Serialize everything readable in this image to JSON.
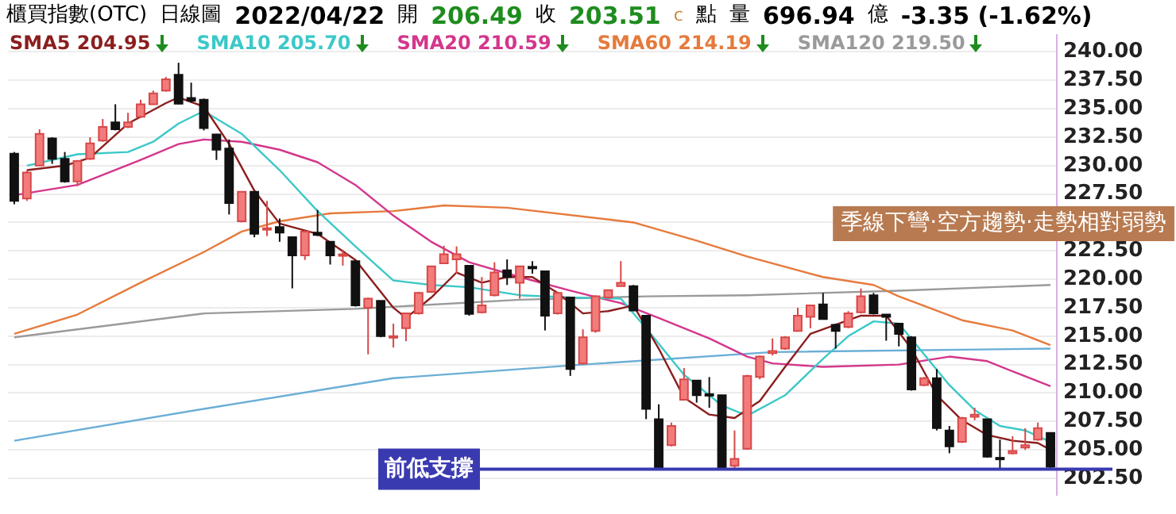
{
  "chart_data": {
    "type": "candlestick",
    "title": "櫃買指數(OTC)",
    "subtitle": "日線圖",
    "annotations": [
      "2022/04/22",
      "開",
      "206.49",
      "收",
      "203.51",
      "c",
      "點",
      "量",
      "696.94",
      "億",
      "-3.35 (-1.62%)",
      "季線下彎·空方趨勢·走勢相對弱勢"
    ],
    "categories": [
      null,
      null,
      null,
      null,
      null,
      null,
      null,
      null,
      null,
      null,
      null,
      null,
      null,
      null,
      null,
      null,
      null,
      null,
      null,
      null,
      null,
      null,
      null,
      null,
      null,
      null,
      null,
      null,
      null,
      null,
      null,
      null,
      null,
      null,
      null,
      null,
      null,
      null,
      null,
      null,
      null,
      null,
      null,
      null,
      null,
      null,
      null,
      null,
      null,
      null,
      null,
      null,
      null,
      null,
      null,
      null,
      null,
      null,
      null,
      null,
      null,
      null,
      null,
      null,
      null,
      null,
      null,
      null,
      null,
      null,
      null,
      null,
      null,
      null,
      null,
      null,
      null,
      null,
      null,
      null,
      null,
      null,
      null
    ],
    "ohlc": [
      [
        231.05,
        231.2,
        226.6,
        226.9
      ],
      [
        227.1,
        229.6,
        226.9,
        229.4
      ],
      [
        230.0,
        233.2,
        230.0,
        232.8
      ],
      [
        232.4,
        232.5,
        230.15,
        230.6
      ],
      [
        230.6,
        231.2,
        228.5,
        228.6
      ],
      [
        228.6,
        230.5,
        228.2,
        230.4
      ],
      [
        230.6,
        232.5,
        230.5,
        231.95
      ],
      [
        232.2,
        234.1,
        232.1,
        233.4
      ],
      [
        233.8,
        235.4,
        233.1,
        233.2
      ],
      [
        233.4,
        234.65,
        233.3,
        233.8
      ],
      [
        234.3,
        235.8,
        234.2,
        235.4
      ],
      [
        235.4,
        236.6,
        235.4,
        236.35
      ],
      [
        236.6,
        237.8,
        236.5,
        237.6
      ],
      [
        238.0,
        239.05,
        235.4,
        235.45
      ],
      [
        235.95,
        237.3,
        235.55,
        235.7
      ],
      [
        235.8,
        235.9,
        233.1,
        233.3
      ],
      [
        232.75,
        232.8,
        230.5,
        231.4
      ],
      [
        231.5,
        232.3,
        225.7,
        226.7
      ],
      [
        225.1,
        227.7,
        225.0,
        227.7
      ],
      [
        227.7,
        227.7,
        223.7,
        224.0
      ],
      [
        224.45,
        226.9,
        223.8,
        224.5
      ],
      [
        224.6,
        225.35,
        223.3,
        224.1
      ],
      [
        223.7,
        223.7,
        219.2,
        222.1
      ],
      [
        222.1,
        224.3,
        221.7,
        224.2
      ],
      [
        224.1,
        226.1,
        223.8,
        223.9
      ],
      [
        223.3,
        223.3,
        221.3,
        222.1
      ],
      [
        222.1,
        222.6,
        221.2,
        222.2
      ],
      [
        221.6,
        221.7,
        217.6,
        217.7
      ],
      [
        217.5,
        218.4,
        213.4,
        218.3
      ],
      [
        218.1,
        218.1,
        214.9,
        215.0
      ],
      [
        214.9,
        216.1,
        214.0,
        215.0
      ],
      [
        215.7,
        217.0,
        214.55,
        217.0
      ],
      [
        217.0,
        218.9,
        216.9,
        218.8
      ],
      [
        218.9,
        221.2,
        218.8,
        221.15
      ],
      [
        221.4,
        222.95,
        221.4,
        222.2
      ],
      [
        221.75,
        222.9,
        220.5,
        222.2
      ],
      [
        221.2,
        221.2,
        216.8,
        216.95
      ],
      [
        217.1,
        220.2,
        217.0,
        217.7
      ],
      [
        218.6,
        221.5,
        218.5,
        220.6
      ],
      [
        220.8,
        221.75,
        219.5,
        220.2
      ],
      [
        219.7,
        221.2,
        218.3,
        221.15
      ],
      [
        221.1,
        221.6,
        220.5,
        221.0
      ],
      [
        220.7,
        220.7,
        215.5,
        216.8
      ],
      [
        217.0,
        218.9,
        216.9,
        218.8
      ],
      [
        218.4,
        218.4,
        211.5,
        212.1
      ],
      [
        212.6,
        215.6,
        212.5,
        214.9
      ],
      [
        215.45,
        218.6,
        215.3,
        218.5
      ],
      [
        218.4,
        219.1,
        218.3,
        219.05
      ],
      [
        219.4,
        221.6,
        219.4,
        219.7
      ],
      [
        219.4,
        219.5,
        217.2,
        217.25
      ],
      [
        216.8,
        216.8,
        207.7,
        208.6
      ],
      [
        207.7,
        209.0,
        203.4,
        203.45
      ],
      [
        205.4,
        207.4,
        205.3,
        207.1
      ],
      [
        209.4,
        212.2,
        209.4,
        211.2
      ],
      [
        211.1,
        211.1,
        209.15,
        209.8
      ],
      [
        209.9,
        211.4,
        208.7,
        209.8
      ],
      [
        209.8,
        209.8,
        203.3,
        203.3
      ],
      [
        203.6,
        206.7,
        203.3,
        204.2
      ],
      [
        205.1,
        211.6,
        205.0,
        211.5
      ],
      [
        211.4,
        213.3,
        211.2,
        213.2
      ],
      [
        213.5,
        214.8,
        213.3,
        213.7
      ],
      [
        213.9,
        215.0,
        213.8,
        214.9
      ],
      [
        215.45,
        217.5,
        215.4,
        216.8
      ],
      [
        216.7,
        217.7,
        215.7,
        217.7
      ],
      [
        217.8,
        218.8,
        216.5,
        216.5
      ],
      [
        216.0,
        216.1,
        213.9,
        215.45
      ],
      [
        215.8,
        217.2,
        215.7,
        217.0
      ],
      [
        217.1,
        219.2,
        217.0,
        218.5
      ],
      [
        218.6,
        218.8,
        216.9,
        217.0
      ],
      [
        216.9,
        216.9,
        214.6,
        216.7
      ],
      [
        216.1,
        216.1,
        214.1,
        215.2
      ],
      [
        214.9,
        215.0,
        210.2,
        210.3
      ],
      [
        210.7,
        211.4,
        210.6,
        211.3
      ],
      [
        211.3,
        212.1,
        206.7,
        206.9
      ],
      [
        206.7,
        207.1,
        204.7,
        205.3
      ],
      [
        205.7,
        207.9,
        205.6,
        207.8
      ],
      [
        207.9,
        208.7,
        207.6,
        208.1
      ],
      [
        207.7,
        207.7,
        204.3,
        204.4
      ],
      [
        204.3,
        205.9,
        203.3,
        204.2
      ],
      [
        204.7,
        206.2,
        204.6,
        204.9
      ],
      [
        205.2,
        206.9,
        205.0,
        205.4
      ],
      [
        205.9,
        207.4,
        205.8,
        206.9
      ],
      [
        206.49,
        206.5,
        203.4,
        203.51
      ]
    ],
    "series": [
      {
        "type": "line",
        "name": "SMA5 204.95",
        "color": "#8b1e1e",
        "values": [
          null,
          229.6,
          null,
          null,
          230.0,
          null,
          230.7,
          null,
          null,
          233.7,
          null,
          null,
          235.5,
          236.0,
          null,
          235.2,
          null,
          231.9,
          null,
          227.8,
          null,
          224.9,
          null,
          null,
          224.0,
          null,
          null,
          221.7,
          null,
          null,
          217.5,
          216.6,
          null,
          218.4,
          null,
          220.6,
          null,
          219.7,
          null,
          220.2,
          null,
          220.2,
          null,
          218.8,
          null,
          217.0,
          null,
          217.2,
          null,
          217.7,
          null,
          213.9,
          null,
          209.6,
          null,
          208.1,
          null,
          207.8,
          null,
          209.3,
          null,
          212.3,
          null,
          215.2,
          null,
          216.0,
          null,
          216.8,
          null,
          216.8,
          null,
          213.9,
          null,
          209.8,
          null,
          207.6,
          null,
          206.3,
          null,
          205.8,
          null,
          205.6,
          205.0
        ]
      },
      {
        "type": "line",
        "name": "SMA10 205.70",
        "color": "#3cc8c8",
        "values": [
          null,
          230.0,
          null,
          null,
          null,
          231.0,
          null,
          null,
          null,
          231.2,
          null,
          232.1,
          null,
          233.7,
          null,
          234.8,
          null,
          null,
          232.8,
          null,
          null,
          229.6,
          null,
          null,
          226.0,
          null,
          null,
          222.9,
          null,
          null,
          219.9,
          null,
          null,
          219.5,
          null,
          null,
          219.3,
          null,
          null,
          null,
          218.6,
          null,
          null,
          null,
          218.4,
          null,
          null,
          null,
          218.3,
          null,
          215.7,
          null,
          null,
          211.6,
          null,
          null,
          208.9,
          null,
          208.0,
          null,
          null,
          209.8,
          null,
          null,
          213.0,
          null,
          215.0,
          null,
          216.3,
          null,
          216.1,
          null,
          213.4,
          null,
          210.7,
          null,
          208.5,
          null,
          207.1,
          null,
          206.7,
          null,
          205.7
        ]
      },
      {
        "type": "line",
        "name": "SMA20 210.59",
        "color": "#d4368c",
        "values": [
          227.4,
          null,
          null,
          null,
          null,
          228.3,
          null,
          null,
          null,
          null,
          230.5,
          null,
          null,
          231.9,
          null,
          232.3,
          null,
          null,
          232.1,
          null,
          null,
          231.4,
          null,
          null,
          230.3,
          null,
          null,
          228.3,
          null,
          null,
          225.6,
          null,
          null,
          223.3,
          null,
          null,
          221.5,
          null,
          null,
          null,
          220.2,
          null,
          null,
          null,
          219.0,
          null,
          null,
          null,
          217.9,
          null,
          null,
          216.6,
          null,
          null,
          null,
          214.8,
          null,
          null,
          213.2,
          null,
          212.6,
          null,
          null,
          null,
          212.3,
          null,
          null,
          null,
          null,
          null,
          212.5,
          null,
          null,
          null,
          213.2,
          null,
          null,
          212.8,
          null,
          211.9,
          null,
          null,
          210.6
        ]
      },
      {
        "type": "line",
        "name": "SMA60 214.19",
        "color": "#e67a3c",
        "values": [
          215.2,
          null,
          null,
          null,
          null,
          216.9,
          null,
          null,
          null,
          null,
          219.7,
          null,
          null,
          null,
          null,
          222.4,
          null,
          null,
          224.2,
          null,
          null,
          225.1,
          null,
          null,
          null,
          225.8,
          null,
          null,
          null,
          null,
          226.0,
          null,
          null,
          null,
          226.5,
          null,
          null,
          null,
          null,
          226.3,
          null,
          null,
          null,
          null,
          null,
          null,
          null,
          null,
          null,
          225.0,
          null,
          null,
          null,
          null,
          223.4,
          null,
          null,
          null,
          222.0,
          null,
          null,
          null,
          null,
          null,
          220.2,
          null,
          null,
          null,
          219.5,
          null,
          218.5,
          null,
          null,
          null,
          null,
          216.4,
          null,
          null,
          null,
          215.5,
          null,
          null,
          214.2
        ]
      },
      {
        "type": "line",
        "name": "SMA120 219.50",
        "color": "#9a9a9a",
        "values": [
          214.9,
          null,
          null,
          null,
          null,
          null,
          null,
          null,
          null,
          null,
          null,
          null,
          null,
          null,
          null,
          217.0,
          null,
          null,
          null,
          null,
          null,
          null,
          null,
          null,
          null,
          null,
          null,
          217.4,
          null,
          null,
          null,
          null,
          null,
          null,
          null,
          null,
          null,
          null,
          null,
          null,
          218.2,
          null,
          null,
          null,
          null,
          null,
          null,
          null,
          null,
          null,
          218.5,
          null,
          null,
          null,
          null,
          null,
          null,
          null,
          218.6,
          null,
          null,
          null,
          null,
          null,
          null,
          null,
          null,
          null,
          null,
          null,
          219.0,
          null,
          null,
          null,
          null,
          null,
          null,
          null,
          null,
          null,
          null,
          null,
          219.5
        ]
      },
      {
        "type": "line",
        "color": "#6aaed6",
        "values": [
          205.8,
          null,
          null,
          null,
          null,
          null,
          null,
          null,
          null,
          null,
          null,
          null,
          null,
          null,
          null,
          208.6,
          null,
          null,
          null,
          null,
          null,
          null,
          null,
          null,
          null,
          null,
          null,
          null,
          null,
          null,
          211.3,
          null,
          null,
          null,
          null,
          null,
          null,
          null,
          null,
          null,
          null,
          null,
          null,
          null,
          null,
          212.5,
          null,
          null,
          null,
          null,
          null,
          null,
          null,
          null,
          null,
          null,
          null,
          null,
          null,
          null,
          213.6,
          null,
          null,
          null,
          null,
          null,
          null,
          null,
          null,
          null,
          null,
          null,
          null,
          null,
          null,
          null,
          null,
          null,
          null,
          null,
          null,
          null,
          213.9
        ]
      }
    ],
    "ylim": [
      201.0,
      241.5
    ],
    "yticks": [
      {
        "value": 202.5,
        "label": "202.50"
      },
      {
        "value": 205,
        "label": "205.00"
      },
      {
        "value": 207.5,
        "label": "207.50"
      },
      {
        "value": 210,
        "label": "210.00"
      },
      {
        "value": 212.5,
        "label": "212.50"
      },
      {
        "value": 215,
        "label": "215.00"
      },
      {
        "value": 217.5,
        "label": "217.50"
      },
      {
        "value": 220,
        "label": "220.00"
      },
      {
        "value": 222.5,
        "label": "222.50"
      },
      {
        "value": 225,
        "label": null
      },
      {
        "value": 227.5,
        "label": "227.50"
      },
      {
        "value": 230,
        "label": "230.00"
      },
      {
        "value": 232.5,
        "label": "232.50"
      },
      {
        "value": 235,
        "label": "235.00"
      },
      {
        "value": 237.5,
        "label": "237.50"
      },
      {
        "value": 240,
        "label": "240.00"
      }
    ],
    "ref_lines": [
      {
        "axis": "y",
        "value": 203.3,
        "label": "前低支撐",
        "color": "#3a3ab0"
      }
    ],
    "grid": "y",
    "legend": "top left",
    "tick_labels": "y"
  }
}
